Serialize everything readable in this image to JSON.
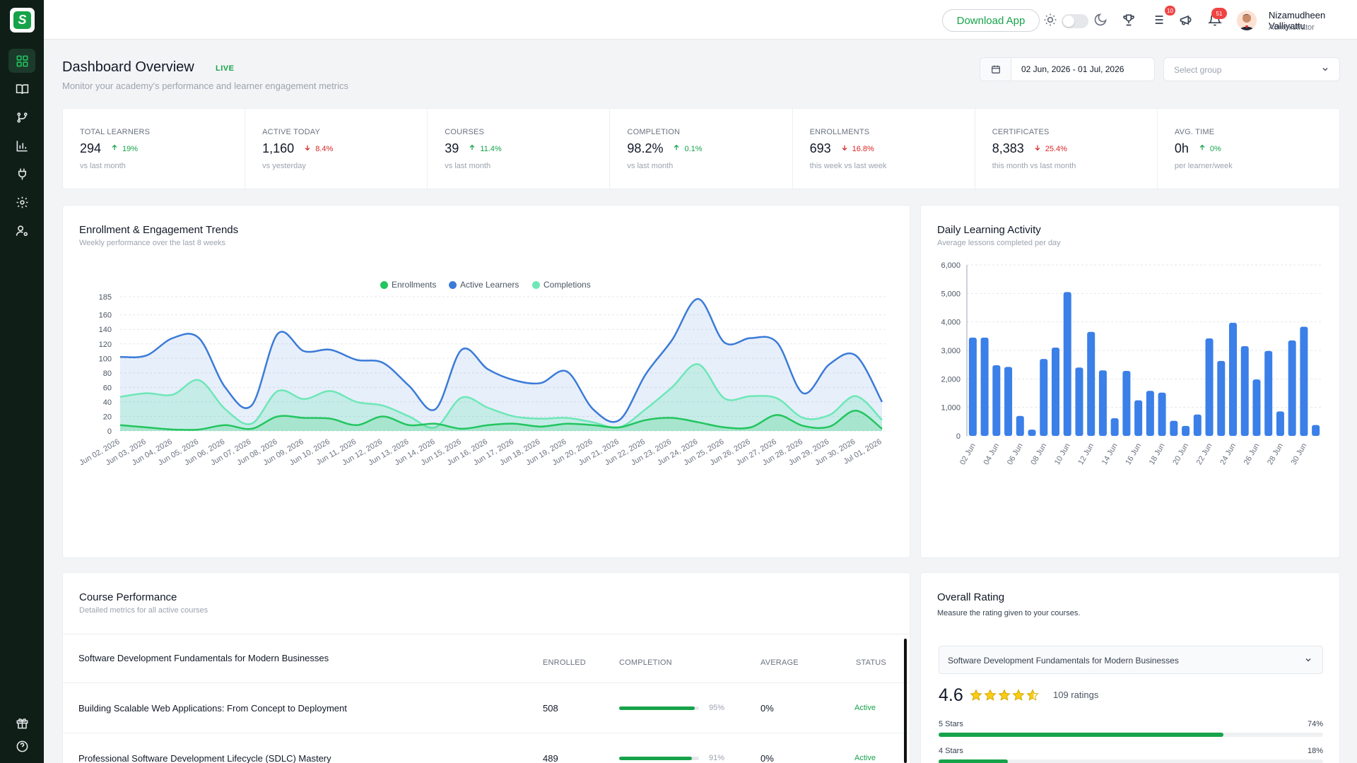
{
  "header": {
    "download_label": "Download App",
    "tasks_badge": "10",
    "notifications_badge": "51",
    "user_name": "Nizamudheen Valliyattu",
    "user_role": "Administrator"
  },
  "page": {
    "title": "Dashboard Overview",
    "live": "LIVE",
    "subtitle": "Monitor your academy's performance and learner engagement metrics",
    "date_range": "02 Jun, 2026 - 01 Jul, 2026",
    "group_placeholder": "Select group"
  },
  "kpis": [
    {
      "label": "TOTAL LEARNERS",
      "value": "294",
      "change": "19%",
      "dir": "up",
      "sub": "vs last month"
    },
    {
      "label": "ACTIVE TODAY",
      "value": "1,160",
      "change": "8.4%",
      "dir": "down",
      "sub": "vs yesterday"
    },
    {
      "label": "COURSES",
      "value": "39",
      "change": "11.4%",
      "dir": "up",
      "sub": "vs last month"
    },
    {
      "label": "COMPLETION",
      "value": "98.2%",
      "change": "0.1%",
      "dir": "up",
      "sub": "vs last month"
    },
    {
      "label": "ENROLLMENTS",
      "value": "693",
      "change": "16.8%",
      "dir": "down",
      "sub": "this week vs last week"
    },
    {
      "label": "CERTIFICATES",
      "value": "8,383",
      "change": "25.4%",
      "dir": "down",
      "sub": "this month vs last month"
    },
    {
      "label": "AVG. TIME",
      "value": "0h",
      "change": "0%",
      "dir": "up",
      "sub": "per learner/week"
    }
  ],
  "trend_card": {
    "title": "Enrollment & Engagement Trends",
    "subtitle": "Weekly performance over the last 8 weeks"
  },
  "activity_card": {
    "title": "Daily Learning Activity",
    "subtitle": "Average lessons completed per day"
  },
  "chart_data": [
    {
      "type": "area",
      "title": "Enrollment & Engagement Trends",
      "x": [
        "Jun 02, 2026",
        "Jun 03, 2026",
        "Jun 04, 2026",
        "Jun 05, 2026",
        "Jun 06, 2026",
        "Jun 07, 2026",
        "Jun 08, 2026",
        "Jun 09, 2026",
        "Jun 10, 2026",
        "Jun 11, 2026",
        "Jun 12, 2026",
        "Jun 13, 2026",
        "Jun 14, 2026",
        "Jun 15, 2026",
        "Jun 16, 2026",
        "Jun 17, 2026",
        "Jun 18, 2026",
        "Jun 19, 2026",
        "Jun 20, 2026",
        "Jun 21, 2026",
        "Jun 22, 2026",
        "Jun 23, 2026",
        "Jun 24, 2026",
        "Jun 25, 2026",
        "Jun 26, 2026",
        "Jun 27, 2026",
        "Jun 28, 2026",
        "Jun 29, 2026",
        "Jun 30, 2026",
        "Jul 01, 2026"
      ],
      "y_ticks": [
        0,
        20,
        40,
        60,
        80,
        100,
        120,
        140,
        160,
        185
      ],
      "ylim": [
        0,
        185
      ],
      "legend_position": "top-center",
      "series": [
        {
          "name": "Enrollments",
          "color": "#22c55e",
          "values": [
            8,
            5,
            2,
            2,
            8,
            3,
            20,
            18,
            17,
            8,
            20,
            8,
            10,
            3,
            8,
            10,
            6,
            10,
            8,
            5,
            15,
            18,
            12,
            5,
            5,
            22,
            7,
            6,
            28,
            3
          ]
        },
        {
          "name": "Active Learners",
          "color": "#3b7bd8",
          "values": [
            102,
            104,
            128,
            128,
            60,
            35,
            134,
            110,
            112,
            98,
            94,
            62,
            30,
            112,
            85,
            70,
            66,
            82,
            30,
            15,
            78,
            125,
            182,
            122,
            128,
            122,
            52,
            92,
            104,
            40
          ]
        },
        {
          "name": "Completions",
          "color": "#6ee7b7",
          "values": [
            47,
            52,
            50,
            70,
            30,
            10,
            55,
            44,
            55,
            40,
            35,
            20,
            5,
            46,
            32,
            20,
            17,
            18,
            12,
            5,
            30,
            60,
            92,
            45,
            48,
            45,
            18,
            22,
            48,
            15
          ]
        }
      ]
    },
    {
      "type": "bar",
      "title": "Daily Learning Activity",
      "categories": [
        "02 Jun",
        "03 Jun",
        "04 Jun",
        "05 Jun",
        "06 Jun",
        "07 Jun",
        "08 Jun",
        "09 Jun",
        "10 Jun",
        "11 Jun",
        "12 Jun",
        "13 Jun",
        "14 Jun",
        "15 Jun",
        "16 Jun",
        "17 Jun",
        "18 Jun",
        "19 Jun",
        "20 Jun",
        "21 Jun",
        "22 Jun",
        "23 Jun",
        "24 Jun",
        "25 Jun",
        "26 Jun",
        "27 Jun",
        "28 Jun",
        "29 Jun",
        "30 Jun",
        "01 Jul"
      ],
      "x_tick_labels": [
        "02 Jun",
        "04 Jun",
        "06 Jun",
        "08 Jun",
        "10 Jun",
        "12 Jun",
        "14 Jun",
        "16 Jun",
        "18 Jun",
        "20 Jun",
        "22 Jun",
        "24 Jun",
        "26 Jun",
        "28 Jun",
        "30 Jun"
      ],
      "y_ticks": [
        "0",
        "1,000",
        "2,000",
        "3,000",
        "4,000",
        "5,000",
        "6,000"
      ],
      "ylim": [
        0,
        6000
      ],
      "color": "#3b7fe8",
      "values": [
        3450,
        3450,
        2480,
        2420,
        700,
        220,
        2700,
        3100,
        5050,
        2400,
        3650,
        2300,
        620,
        2280,
        1250,
        1580,
        1520,
        530,
        350,
        750,
        3420,
        2630,
        3970,
        3150,
        1980,
        2980,
        860,
        3350,
        3830,
        380
      ]
    }
  ],
  "course_table": {
    "title": "Course Performance",
    "subtitle": "Detailed metrics for all active courses",
    "col_enrolled": "ENROLLED",
    "col_completion": "COMPLETION",
    "col_average": "AVERAGE",
    "col_status": "STATUS",
    "rows": [
      {
        "name": "Software Development Fundamentals for Modern Businesses"
      },
      {
        "name": "Building Scalable Web Applications: From Concept to Deployment",
        "enrolled": "508",
        "completion": 95,
        "completion_label": "95%",
        "average": "0%",
        "status": "Active"
      },
      {
        "name": "Professional Software Development Lifecycle (SDLC) Mastery",
        "enrolled": "489",
        "completion": 91,
        "completion_label": "91%",
        "average": "0%",
        "status": "Active"
      }
    ]
  },
  "rating_card": {
    "title": "Overall Rating",
    "subtitle": "Measure the rating given to your courses.",
    "course_selected": "Software Development Fundamentals for Modern Businesses",
    "score": "4.6",
    "stars": 4.6,
    "ratings_count": "109 ratings",
    "breakdown": [
      {
        "label": "5 Stars",
        "pct_label": "74%",
        "pct": 74
      },
      {
        "label": "4 Stars",
        "pct_label": "18%",
        "pct": 18
      }
    ]
  }
}
